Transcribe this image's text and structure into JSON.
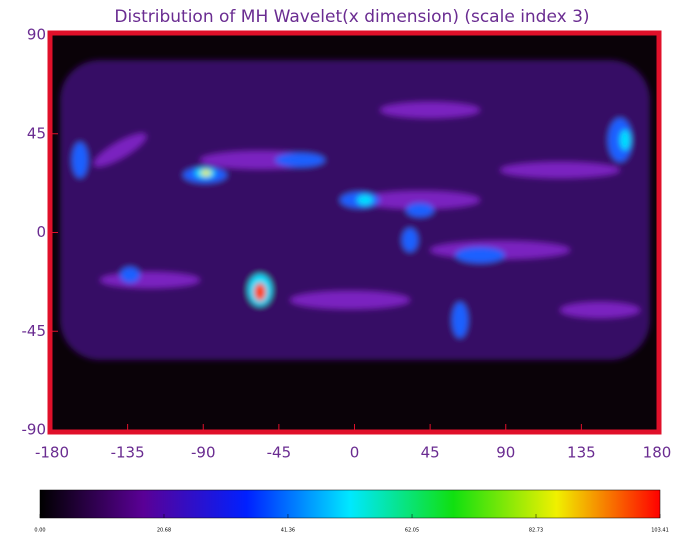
{
  "chart_data": {
    "type": "map",
    "title": "Distribution of MH Wavelet(x dimension) (scale index 3)",
    "xlim": [
      -180,
      180
    ],
    "ylim": [
      -90,
      90
    ],
    "xticks": [
      -180,
      -135,
      -90,
      -45,
      0,
      45,
      90,
      135,
      180
    ],
    "yticks": [
      -90,
      -45,
      0,
      45,
      90
    ],
    "frame_color": "#e0102a",
    "background_color": "#0a0208",
    "colorbar": {
      "range": [
        0,
        103.41
      ],
      "colors": [
        "#000000",
        "#5a0096",
        "#0020ff",
        "#00e8ff",
        "#10e010",
        "#f0f000",
        "#ff0000"
      ],
      "ticks": [
        {
          "value": 0,
          "label": "0.00"
        },
        {
          "value": 20.68,
          "label": "20.68"
        },
        {
          "value": 41.36,
          "label": "41.36"
        },
        {
          "value": 62.05,
          "label": "62.05"
        },
        {
          "value": 82.73,
          "label": "82.73"
        },
        {
          "value": 103.41,
          "label": "103.41"
        }
      ]
    }
  }
}
